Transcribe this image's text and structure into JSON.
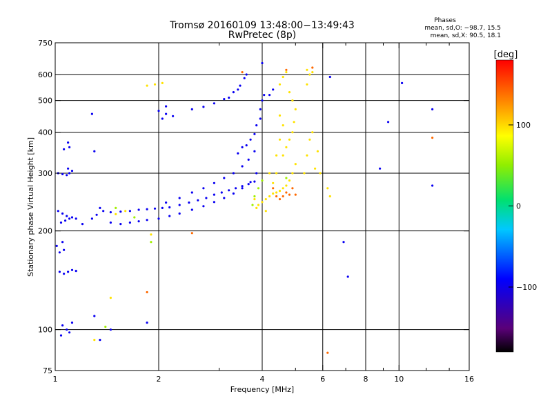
{
  "chart_data": {
    "type": "scatter",
    "title": "Tromsø 20160109 13:48:00−13:49:43",
    "subtitle": "RwPretec (8p)",
    "stats": {
      "heading": "Phases",
      "line_o": "mean, sd,O: −98.7, 15.5",
      "line_x": "mean, sd,X:  90.5, 18.1"
    },
    "xlabel": "Frequency [MHz]",
    "ylabel": "Stationary phase Virtual Height [km]",
    "x_scale": "log",
    "y_scale": "log",
    "xlim": [
      1,
      16
    ],
    "ylim": [
      75,
      750
    ],
    "grid": true,
    "x_ticks": [
      {
        "value": 1,
        "label": "1"
      },
      {
        "value": 2,
        "label": "2"
      },
      {
        "value": 4,
        "label": "4"
      },
      {
        "value": 6,
        "label": "6"
      },
      {
        "value": 8,
        "label": "8"
      },
      {
        "value": 10,
        "label": "10"
      },
      {
        "value": 16,
        "label": "16"
      }
    ],
    "x_minor_ticks": [
      3,
      5,
      7,
      9,
      12,
      14
    ],
    "y_ticks": [
      {
        "value": 75,
        "label": "75"
      },
      {
        "value": 100,
        "label": "100"
      },
      {
        "value": 200,
        "label": "200"
      },
      {
        "value": 300,
        "label": "300"
      },
      {
        "value": 400,
        "label": "400"
      },
      {
        "value": 500,
        "label": "500"
      },
      {
        "value": 600,
        "label": "600"
      },
      {
        "value": 750,
        "label": "750"
      }
    ],
    "colorbar": {
      "label": "[deg]",
      "min": -180,
      "max": 180,
      "ticks": [
        {
          "value": 100,
          "label": "100"
        },
        {
          "value": 0,
          "label": "0"
        },
        {
          "value": -100,
          "label": "−100"
        }
      ]
    },
    "series": [
      {
        "phase": -105,
        "points": [
          [
            1.02,
            230
          ],
          [
            1.05,
            226
          ],
          [
            1.08,
            222
          ],
          [
            1.1,
            218
          ],
          [
            1.04,
            212
          ],
          [
            1.07,
            215
          ],
          [
            1.12,
            220
          ],
          [
            1.15,
            218
          ],
          [
            1.02,
            300
          ],
          [
            1.05,
            298
          ],
          [
            1.08,
            296
          ],
          [
            1.1,
            300
          ],
          [
            1.12,
            305
          ],
          [
            1.09,
            310
          ],
          [
            1.06,
            355
          ],
          [
            1.09,
            372
          ],
          [
            1.1,
            360
          ],
          [
            1.01,
            180
          ],
          [
            1.03,
            172
          ],
          [
            1.05,
            185
          ],
          [
            1.06,
            175
          ],
          [
            1.03,
            150
          ],
          [
            1.06,
            148
          ],
          [
            1.09,
            150
          ],
          [
            1.12,
            152
          ],
          [
            1.15,
            151
          ],
          [
            1.05,
            103
          ],
          [
            1.08,
            100
          ],
          [
            1.1,
            98
          ],
          [
            1.12,
            105
          ],
          [
            1.04,
            96
          ],
          [
            1.28,
            218
          ],
          [
            1.32,
            224
          ],
          [
            1.38,
            230
          ],
          [
            1.45,
            228
          ],
          [
            1.55,
            229
          ],
          [
            1.65,
            230
          ],
          [
            1.75,
            232
          ],
          [
            1.85,
            233
          ],
          [
            1.95,
            234
          ],
          [
            2.05,
            235
          ],
          [
            2.15,
            236
          ],
          [
            2.3,
            240
          ],
          [
            2.45,
            244
          ],
          [
            2.6,
            248
          ],
          [
            2.75,
            252
          ],
          [
            2.9,
            258
          ],
          [
            3.05,
            262
          ],
          [
            3.2,
            266
          ],
          [
            3.35,
            270
          ],
          [
            3.5,
            274
          ],
          [
            3.65,
            278
          ],
          [
            3.8,
            283
          ],
          [
            1.45,
            212
          ],
          [
            1.55,
            210
          ],
          [
            1.65,
            212
          ],
          [
            1.75,
            214
          ],
          [
            1.85,
            216
          ],
          [
            2.0,
            218
          ],
          [
            2.15,
            222
          ],
          [
            2.3,
            226
          ],
          [
            2.5,
            232
          ],
          [
            2.7,
            238
          ],
          [
            2.9,
            245
          ],
          [
            3.1,
            252
          ],
          [
            3.3,
            260
          ],
          [
            3.5,
            270
          ],
          [
            3.7,
            282
          ],
          [
            3.85,
            300
          ],
          [
            2.1,
            244
          ],
          [
            2.3,
            252
          ],
          [
            2.5,
            262
          ],
          [
            2.7,
            270
          ],
          [
            2.9,
            280
          ],
          [
            3.1,
            290
          ],
          [
            3.3,
            300
          ],
          [
            3.5,
            315
          ],
          [
            3.65,
            330
          ],
          [
            3.8,
            350
          ],
          [
            3.6,
            365
          ],
          [
            3.7,
            380
          ],
          [
            3.8,
            395
          ],
          [
            3.85,
            420
          ],
          [
            3.95,
            440
          ],
          [
            3.95,
            470
          ],
          [
            4.0,
            500
          ],
          [
            4.05,
            520
          ],
          [
            3.4,
            345
          ],
          [
            3.5,
            360
          ],
          [
            2.5,
            470
          ],
          [
            2.7,
            478
          ],
          [
            2.9,
            490
          ],
          [
            3.1,
            505
          ],
          [
            3.3,
            530
          ],
          [
            3.45,
            555
          ],
          [
            3.55,
            585
          ],
          [
            3.2,
            510
          ],
          [
            3.4,
            540
          ],
          [
            2.0,
            465
          ],
          [
            2.1,
            455
          ],
          [
            2.2,
            448
          ],
          [
            2.05,
            440
          ],
          [
            2.1,
            480
          ],
          [
            3.6,
            600
          ],
          [
            4.0,
            650
          ],
          [
            1.28,
            455
          ],
          [
            1.3,
            350
          ],
          [
            1.2,
            210
          ],
          [
            4.2,
            520
          ],
          [
            4.3,
            540
          ],
          [
            6.3,
            590
          ],
          [
            9.3,
            430
          ],
          [
            10.2,
            565
          ],
          [
            12.5,
            470
          ],
          [
            12.5,
            275
          ],
          [
            6.9,
            185
          ],
          [
            7.1,
            145
          ],
          [
            8.8,
            310
          ],
          [
            1.3,
            110
          ],
          [
            1.35,
            93
          ],
          [
            1.45,
            100
          ],
          [
            1.85,
            105
          ],
          [
            1.35,
            235
          ]
        ]
      },
      {
        "phase": 95,
        "points": [
          [
            3.9,
            240
          ],
          [
            4.0,
            245
          ],
          [
            4.1,
            250
          ],
          [
            4.2,
            255
          ],
          [
            4.3,
            260
          ],
          [
            4.4,
            262
          ],
          [
            4.5,
            265
          ],
          [
            4.6,
            270
          ],
          [
            4.7,
            275
          ],
          [
            4.8,
            285
          ],
          [
            4.9,
            300
          ],
          [
            5.0,
            320
          ],
          [
            4.6,
            340
          ],
          [
            4.7,
            360
          ],
          [
            4.8,
            380
          ],
          [
            4.9,
            400
          ],
          [
            4.95,
            430
          ],
          [
            5.0,
            470
          ],
          [
            4.9,
            500
          ],
          [
            4.8,
            530
          ],
          [
            4.5,
            560
          ],
          [
            4.6,
            590
          ],
          [
            4.7,
            610
          ],
          [
            5.4,
            560
          ],
          [
            5.5,
            600
          ],
          [
            5.6,
            610
          ],
          [
            5.4,
            620
          ],
          [
            5.3,
            300
          ],
          [
            5.4,
            340
          ],
          [
            5.5,
            380
          ],
          [
            5.6,
            400
          ],
          [
            5.7,
            310
          ],
          [
            5.9,
            300
          ],
          [
            5.8,
            350
          ],
          [
            4.4,
            300
          ],
          [
            4.4,
            340
          ],
          [
            4.5,
            380
          ],
          [
            4.6,
            420
          ],
          [
            4.5,
            450
          ],
          [
            4.3,
            280
          ],
          [
            4.2,
            300
          ],
          [
            3.85,
            235
          ],
          [
            3.8,
            250
          ],
          [
            4.1,
            230
          ],
          [
            1.85,
            555
          ],
          [
            1.95,
            560
          ],
          [
            2.05,
            565
          ],
          [
            1.6,
            230
          ],
          [
            1.5,
            225
          ],
          [
            6.2,
            270
          ],
          [
            6.3,
            255
          ],
          [
            1.45,
            125
          ],
          [
            1.3,
            93
          ],
          [
            1.9,
            195
          ]
        ]
      },
      {
        "phase": 55,
        "points": [
          [
            3.75,
            240
          ],
          [
            3.8,
            255
          ],
          [
            3.9,
            270
          ],
          [
            4.0,
            285
          ],
          [
            1.5,
            235
          ],
          [
            1.7,
            220
          ],
          [
            4.7,
            290
          ],
          [
            1.9,
            185
          ],
          [
            1.4,
            102
          ]
        ]
      },
      {
        "phase": 140,
        "points": [
          [
            4.5,
            250
          ],
          [
            4.6,
            255
          ],
          [
            4.7,
            262
          ],
          [
            4.8,
            258
          ],
          [
            4.3,
            270
          ],
          [
            5.0,
            258
          ],
          [
            4.9,
            270
          ],
          [
            4.4,
            255
          ],
          [
            3.5,
            610
          ],
          [
            4.7,
            620
          ],
          [
            6.2,
            85
          ],
          [
            2.5,
            197
          ],
          [
            12.5,
            385
          ],
          [
            1.85,
            130
          ],
          [
            5.6,
            630
          ]
        ]
      }
    ]
  }
}
